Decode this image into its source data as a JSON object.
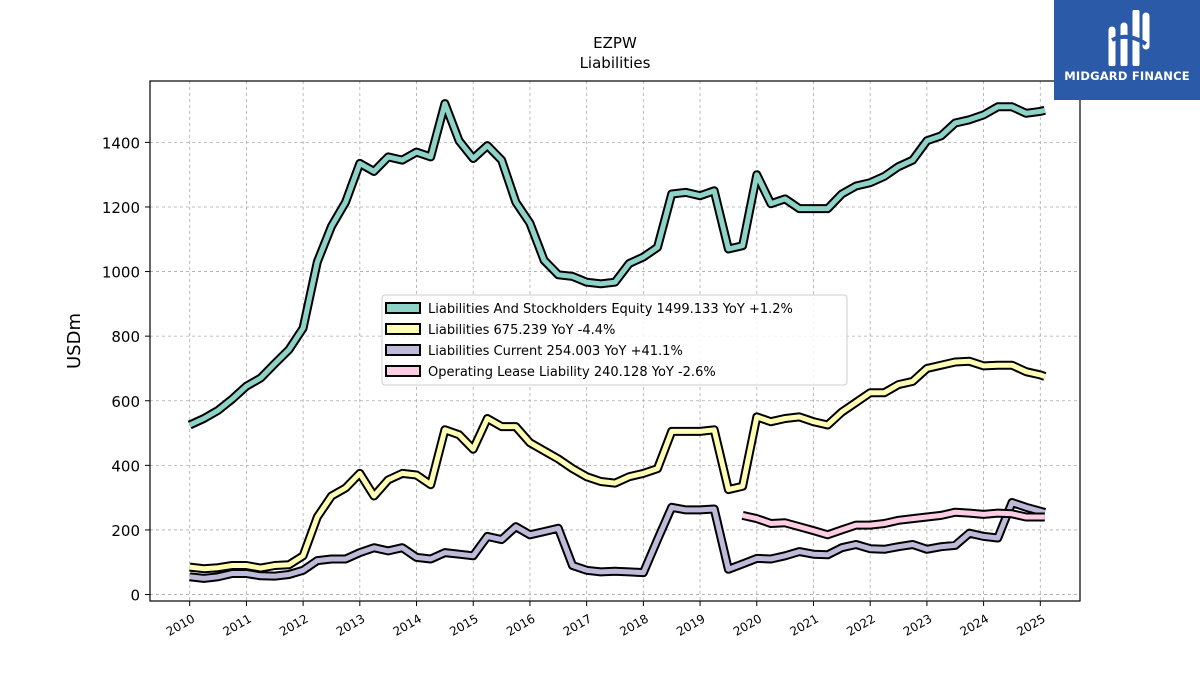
{
  "brand": {
    "name": "MIDGARD FINANCE",
    "logo_icon": "midgard-logo-icon",
    "color": "#2b5aa8"
  },
  "chart_data": {
    "type": "line",
    "title": "EZPW",
    "subtitle": "Liabilities",
    "xlabel": "",
    "ylabel": "USDm",
    "xlim": [
      2009.3,
      2025.7
    ],
    "ylim": [
      -20,
      1590
    ],
    "y_ticks": [
      0,
      200,
      400,
      600,
      800,
      1000,
      1200,
      1400
    ],
    "x_ticks": [
      "2010",
      "2011",
      "2012",
      "2013",
      "2014",
      "2015",
      "2016",
      "2017",
      "2018",
      "2019",
      "2020",
      "2021",
      "2022",
      "2023",
      "2024",
      "2025"
    ],
    "grid": true,
    "legend_position": "center",
    "series": [
      {
        "name": "Liabilities And Stockholders Equity",
        "legend_label": "Liabilities And Stockholders Equity  1499.133 YoY +1.2%",
        "color": "#8dd3c7",
        "points": [
          [
            2010.0,
            525
          ],
          [
            2010.25,
            545
          ],
          [
            2010.5,
            570
          ],
          [
            2010.75,
            605
          ],
          [
            2011.0,
            645
          ],
          [
            2011.25,
            670
          ],
          [
            2011.5,
            715
          ],
          [
            2011.75,
            758
          ],
          [
            2012.0,
            825
          ],
          [
            2012.25,
            1030
          ],
          [
            2012.5,
            1140
          ],
          [
            2012.75,
            1215
          ],
          [
            2013.0,
            1335
          ],
          [
            2013.25,
            1310
          ],
          [
            2013.5,
            1355
          ],
          [
            2013.75,
            1345
          ],
          [
            2014.0,
            1370
          ],
          [
            2014.25,
            1355
          ],
          [
            2014.5,
            1520
          ],
          [
            2014.75,
            1405
          ],
          [
            2015.0,
            1350
          ],
          [
            2015.25,
            1390
          ],
          [
            2015.5,
            1345
          ],
          [
            2015.75,
            1215
          ],
          [
            2016.0,
            1150
          ],
          [
            2016.25,
            1035
          ],
          [
            2016.5,
            990
          ],
          [
            2016.75,
            985
          ],
          [
            2017.0,
            967
          ],
          [
            2017.25,
            962
          ],
          [
            2017.5,
            967
          ],
          [
            2017.75,
            1025
          ],
          [
            2018.0,
            1045
          ],
          [
            2018.25,
            1075
          ],
          [
            2018.5,
            1240
          ],
          [
            2018.75,
            1245
          ],
          [
            2019.0,
            1235
          ],
          [
            2019.25,
            1250
          ],
          [
            2019.5,
            1070
          ],
          [
            2019.75,
            1080
          ],
          [
            2020.0,
            1300
          ],
          [
            2020.25,
            1210
          ],
          [
            2020.5,
            1225
          ],
          [
            2020.75,
            1195
          ],
          [
            2021.0,
            1195
          ],
          [
            2021.25,
            1195
          ],
          [
            2021.5,
            1240
          ],
          [
            2021.75,
            1265
          ],
          [
            2022.0,
            1275
          ],
          [
            2022.25,
            1295
          ],
          [
            2022.5,
            1325
          ],
          [
            2022.75,
            1345
          ],
          [
            2023.0,
            1405
          ],
          [
            2023.25,
            1420
          ],
          [
            2023.5,
            1460
          ],
          [
            2023.75,
            1470
          ],
          [
            2024.0,
            1485
          ],
          [
            2024.25,
            1510
          ],
          [
            2024.5,
            1510
          ],
          [
            2024.75,
            1490
          ],
          [
            2025.0,
            1496
          ],
          [
            2025.08,
            1499.133
          ]
        ]
      },
      {
        "name": "Liabilities",
        "legend_label": "Liabilities  675.239 YoY -4.4%",
        "color": "#ffffb3",
        "points": [
          [
            2010.0,
            85
          ],
          [
            2010.25,
            80
          ],
          [
            2010.5,
            83
          ],
          [
            2010.75,
            90
          ],
          [
            2011.0,
            90
          ],
          [
            2011.25,
            82
          ],
          [
            2011.5,
            90
          ],
          [
            2011.75,
            92
          ],
          [
            2012.0,
            120
          ],
          [
            2012.25,
            240
          ],
          [
            2012.5,
            305
          ],
          [
            2012.75,
            330
          ],
          [
            2013.0,
            375
          ],
          [
            2013.25,
            305
          ],
          [
            2013.5,
            355
          ],
          [
            2013.75,
            375
          ],
          [
            2014.0,
            370
          ],
          [
            2014.25,
            340
          ],
          [
            2014.5,
            510
          ],
          [
            2014.75,
            495
          ],
          [
            2015.0,
            450
          ],
          [
            2015.25,
            545
          ],
          [
            2015.5,
            520
          ],
          [
            2015.75,
            520
          ],
          [
            2016.0,
            470
          ],
          [
            2016.25,
            445
          ],
          [
            2016.5,
            420
          ],
          [
            2016.75,
            390
          ],
          [
            2017.0,
            365
          ],
          [
            2017.25,
            350
          ],
          [
            2017.5,
            345
          ],
          [
            2017.75,
            365
          ],
          [
            2018.0,
            375
          ],
          [
            2018.25,
            390
          ],
          [
            2018.5,
            505
          ],
          [
            2018.75,
            505
          ],
          [
            2019.0,
            505
          ],
          [
            2019.25,
            510
          ],
          [
            2019.5,
            325
          ],
          [
            2019.75,
            335
          ],
          [
            2020.0,
            550
          ],
          [
            2020.25,
            535
          ],
          [
            2020.5,
            545
          ],
          [
            2020.75,
            550
          ],
          [
            2021.0,
            535
          ],
          [
            2021.25,
            525
          ],
          [
            2021.5,
            565
          ],
          [
            2021.75,
            595
          ],
          [
            2022.0,
            625
          ],
          [
            2022.25,
            625
          ],
          [
            2022.5,
            650
          ],
          [
            2022.75,
            660
          ],
          [
            2023.0,
            700
          ],
          [
            2023.25,
            710
          ],
          [
            2023.5,
            720
          ],
          [
            2023.75,
            722
          ],
          [
            2024.0,
            708
          ],
          [
            2024.25,
            710
          ],
          [
            2024.5,
            710
          ],
          [
            2024.75,
            690
          ],
          [
            2025.0,
            680
          ],
          [
            2025.08,
            675.239
          ]
        ]
      },
      {
        "name": "Liabilities Current",
        "legend_label": "Liabilities Current  254.003 YoY +41.1%",
        "color": "#bebada",
        "points": [
          [
            2010.0,
            55
          ],
          [
            2010.25,
            50
          ],
          [
            2010.5,
            55
          ],
          [
            2010.75,
            65
          ],
          [
            2011.0,
            65
          ],
          [
            2011.25,
            58
          ],
          [
            2011.5,
            57
          ],
          [
            2011.75,
            62
          ],
          [
            2012.0,
            75
          ],
          [
            2012.25,
            105
          ],
          [
            2012.5,
            110
          ],
          [
            2012.75,
            110
          ],
          [
            2013.0,
            130
          ],
          [
            2013.25,
            145
          ],
          [
            2013.5,
            135
          ],
          [
            2013.75,
            145
          ],
          [
            2014.0,
            115
          ],
          [
            2014.25,
            110
          ],
          [
            2014.5,
            130
          ],
          [
            2014.75,
            125
          ],
          [
            2015.0,
            120
          ],
          [
            2015.25,
            180
          ],
          [
            2015.5,
            170
          ],
          [
            2015.75,
            210
          ],
          [
            2016.0,
            185
          ],
          [
            2016.25,
            195
          ],
          [
            2016.5,
            205
          ],
          [
            2016.75,
            90
          ],
          [
            2017.0,
            75
          ],
          [
            2017.25,
            70
          ],
          [
            2017.5,
            72
          ],
          [
            2017.75,
            70
          ],
          [
            2018.0,
            68
          ],
          [
            2018.25,
            170
          ],
          [
            2018.5,
            270
          ],
          [
            2018.75,
            262
          ],
          [
            2019.0,
            262
          ],
          [
            2019.25,
            265
          ],
          [
            2019.5,
            78
          ],
          [
            2019.75,
            95
          ],
          [
            2020.0,
            112
          ],
          [
            2020.25,
            110
          ],
          [
            2020.5,
            120
          ],
          [
            2020.75,
            133
          ],
          [
            2021.0,
            125
          ],
          [
            2021.25,
            123
          ],
          [
            2021.5,
            145
          ],
          [
            2021.75,
            155
          ],
          [
            2022.0,
            142
          ],
          [
            2022.25,
            140
          ],
          [
            2022.5,
            148
          ],
          [
            2022.75,
            155
          ],
          [
            2023.0,
            140
          ],
          [
            2023.25,
            148
          ],
          [
            2023.5,
            152
          ],
          [
            2023.75,
            190
          ],
          [
            2024.0,
            180
          ],
          [
            2024.25,
            175
          ],
          [
            2024.5,
            285
          ],
          [
            2024.75,
            270
          ],
          [
            2025.0,
            258
          ],
          [
            2025.08,
            254.003
          ]
        ]
      },
      {
        "name": "Operating Lease Liability",
        "legend_label": "Operating Lease Liability  240.128 YoY -2.6%",
        "color": "#fccde5",
        "points": [
          [
            2019.75,
            245
          ],
          [
            2020.0,
            235
          ],
          [
            2020.25,
            220
          ],
          [
            2020.5,
            222
          ],
          [
            2020.75,
            210
          ],
          [
            2021.0,
            198
          ],
          [
            2021.25,
            185
          ],
          [
            2021.5,
            200
          ],
          [
            2021.75,
            215
          ],
          [
            2022.0,
            215
          ],
          [
            2022.25,
            220
          ],
          [
            2022.5,
            230
          ],
          [
            2022.75,
            235
          ],
          [
            2023.0,
            240
          ],
          [
            2023.25,
            245
          ],
          [
            2023.5,
            255
          ],
          [
            2023.75,
            252
          ],
          [
            2024.0,
            248
          ],
          [
            2024.25,
            252
          ],
          [
            2024.5,
            250
          ],
          [
            2024.75,
            240
          ],
          [
            2025.0,
            240
          ],
          [
            2025.08,
            240.128
          ]
        ]
      }
    ]
  }
}
